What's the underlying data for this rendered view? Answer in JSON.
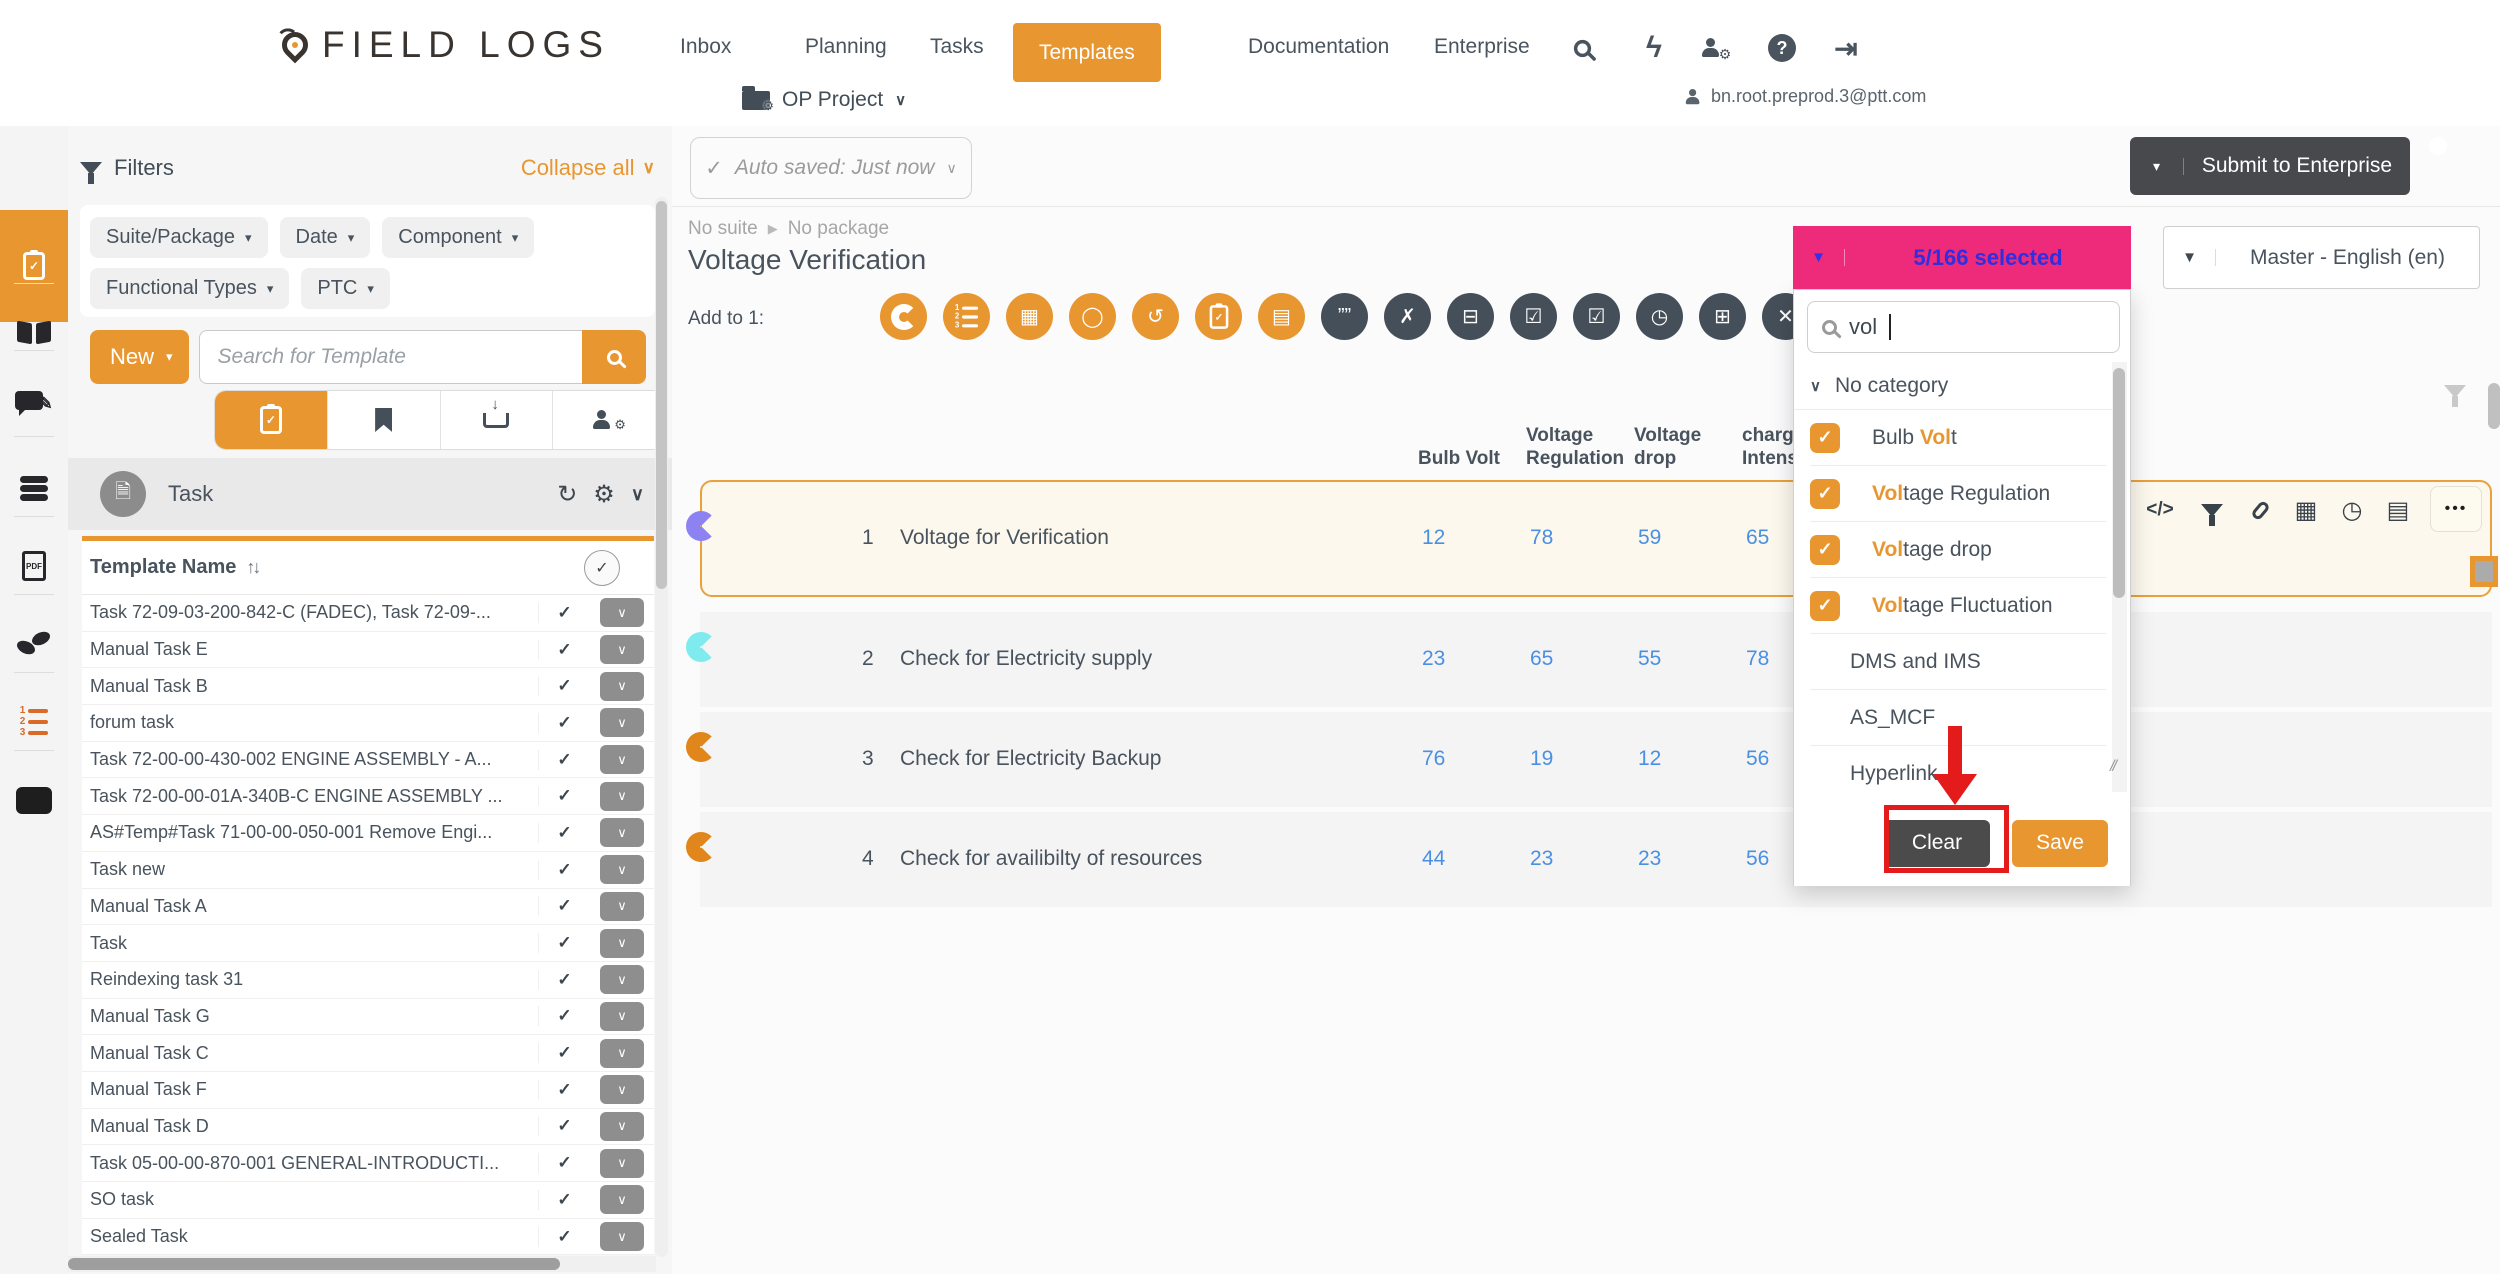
{
  "colors": {
    "orange": "#E8962F",
    "pink": "#EE2A7B",
    "selected_text_blue": "#2F2FE0",
    "value_link_blue": "#4A90E2",
    "dark_text": "#49535D",
    "annotation_red": "#E31B1B",
    "button_dark": "#4B4B4B"
  },
  "nav": {
    "logo": "FIELD LOGS",
    "items": [
      "Inbox",
      "Planning",
      "Tasks",
      "Templates",
      "Documentation",
      "Enterprise"
    ],
    "active_item": "Templates",
    "icons": [
      "search-icon",
      "lightning-icon",
      "user-settings-icon",
      "help-icon",
      "logout-icon"
    ],
    "user_email": "bn.root.preprod.3@ptt.com",
    "project_selector": "OP Project"
  },
  "sidebar_rail": [
    {
      "name": "templates-clipboard-icon",
      "active": true
    },
    {
      "name": "documentation-book-icon",
      "active": false
    },
    {
      "name": "feedback-comment-edit-icon",
      "active": false
    },
    {
      "name": "database-icon",
      "active": false
    },
    {
      "name": "pdf-file-icon",
      "active": false
    },
    {
      "name": "footprints-icon",
      "active": false
    },
    {
      "name": "numbered-list-icon",
      "active": false
    },
    {
      "name": "solid-rectangle-icon",
      "active": false
    }
  ],
  "filters": {
    "title": "Filters",
    "collapse_all": "Collapse all",
    "chips": [
      "Suite/Package",
      "Date",
      "Component",
      "Functional Types",
      "PTC"
    ]
  },
  "template_panel": {
    "new_button": "New",
    "search_placeholder": "Search for Template",
    "tabs": [
      "templates-tab",
      "bookmarks-tab",
      "import-tray-tab",
      "user-settings-tab"
    ],
    "section_title": "Task",
    "name_header": "Template Name",
    "rows": [
      "Task 72-09-03-200-842-C (FADEC), Task 72-09-...",
      "Manual Task E",
      "Manual Task B",
      "forum task",
      "Task 72-00-00-430-002 ENGINE ASSEMBLY - A...",
      "Task 72-00-00-01A-340B-C ENGINE ASSEMBLY ...",
      "AS#Temp#Task 71-00-00-050-001 Remove Engi...",
      "Task new",
      "Manual Task A",
      "Task",
      "Reindexing task 31",
      "Manual Task G",
      "Manual Task C",
      "Manual Task F",
      "Manual Task D",
      "Task 05-00-00-870-001 GENERAL-INTRODUCTI...",
      "SO task",
      "Sealed Task"
    ]
  },
  "toolbar_top": {
    "autosave_label": "Auto saved: Just now",
    "submit_button": "Submit to Enterprise"
  },
  "page_header": {
    "breadcrumb_suite": "No suite",
    "breadcrumb_package": "No package",
    "title": "Voltage Verification",
    "add_to_label": "Add to 1:"
  },
  "selectors": {
    "selected_badge": "5/166 selected",
    "language": "Master - English (en)"
  },
  "add_to_icons": [
    {
      "name": "open-circle-icon",
      "style": "orange",
      "glyph": "arc"
    },
    {
      "name": "numbered-list-icon",
      "style": "orange",
      "glyph": "numlist"
    },
    {
      "name": "table-grid-icon",
      "style": "orange",
      "glyph": "▦"
    },
    {
      "name": "circle-outline-icon",
      "style": "orange",
      "glyph": "◯"
    },
    {
      "name": "hook-loop-icon",
      "style": "orange",
      "glyph": "↺"
    },
    {
      "name": "clipboard-check-icon",
      "style": "orange",
      "glyph": "clipb"
    },
    {
      "name": "film-frames-icon",
      "style": "orange",
      "glyph": "▤"
    },
    {
      "name": "quotes-icon",
      "style": "dark",
      "glyph": "””"
    },
    {
      "name": "check-cross-icon",
      "style": "dark",
      "glyph": "✗"
    },
    {
      "name": "input-dropdown-icon",
      "style": "dark",
      "glyph": "⊟"
    },
    {
      "name": "checklist-icon",
      "style": "dark",
      "glyph": "☑"
    },
    {
      "name": "checkbox-check-icon",
      "style": "dark",
      "glyph": "☑"
    },
    {
      "name": "clock-icon",
      "style": "dark",
      "glyph": "◷"
    },
    {
      "name": "calculator-icon",
      "style": "dark",
      "glyph": "⊞"
    },
    {
      "name": "crossed-tools-icon",
      "style": "dark",
      "glyph": "✕"
    }
  ],
  "data_table": {
    "columns": [
      "Bulb Volt",
      "Voltage\nRegulation",
      "Voltage\ndrop",
      "charg\nIntens"
    ],
    "rows": [
      {
        "num": "1",
        "name": "Voltage for Verification",
        "values": [
          "12",
          "78",
          "59",
          "65"
        ],
        "selected": true,
        "badge_color": "#8C82F2"
      },
      {
        "num": "2",
        "name": "Check for Electricity supply",
        "values": [
          "23",
          "65",
          "55",
          "78"
        ],
        "selected": false,
        "badge_color": "#7FEBEE"
      },
      {
        "num": "3",
        "name": "Check for Electricity Backup",
        "values": [
          "76",
          "19",
          "12",
          "56"
        ],
        "selected": false,
        "badge_color": "#E1861B"
      },
      {
        "num": "4",
        "name": "Check for availibilty of resources",
        "values": [
          "44",
          "23",
          "23",
          "56"
        ],
        "selected": false,
        "badge_color": "#E1861B"
      }
    ]
  },
  "row_toolbar": {
    "icons": [
      {
        "name": "code-icon",
        "glyph": "</>"
      },
      {
        "name": "filter-funnel-icon",
        "glyph": "funnel"
      },
      {
        "name": "paperclip-icon",
        "glyph": "clip"
      },
      {
        "name": "grid-icon",
        "glyph": "▦"
      },
      {
        "name": "stopwatch-icon",
        "glyph": "◷"
      },
      {
        "name": "data-list-icon",
        "glyph": "▤"
      }
    ],
    "more_label": "•••"
  },
  "category_dropdown": {
    "search_value": "vol",
    "group_label": "No category",
    "items": [
      {
        "prefix": "Bulb ",
        "match": "Vol",
        "suffix": "t",
        "checked": true
      },
      {
        "prefix": "",
        "match": "Vol",
        "suffix": "tage Regulation",
        "checked": true
      },
      {
        "prefix": "",
        "match": "Vol",
        "suffix": "tage drop",
        "checked": true
      },
      {
        "prefix": "",
        "match": "Vol",
        "suffix": "tage Fluctuation",
        "checked": true
      },
      {
        "prefix": "DMS and IMS",
        "match": "",
        "suffix": "",
        "checked": false
      },
      {
        "prefix": "AS_MCF",
        "match": "",
        "suffix": "",
        "checked": false
      },
      {
        "prefix": "Hyperlink",
        "match": "",
        "suffix": "",
        "checked": false
      }
    ],
    "clear_button": "Clear",
    "save_button": "Save"
  }
}
